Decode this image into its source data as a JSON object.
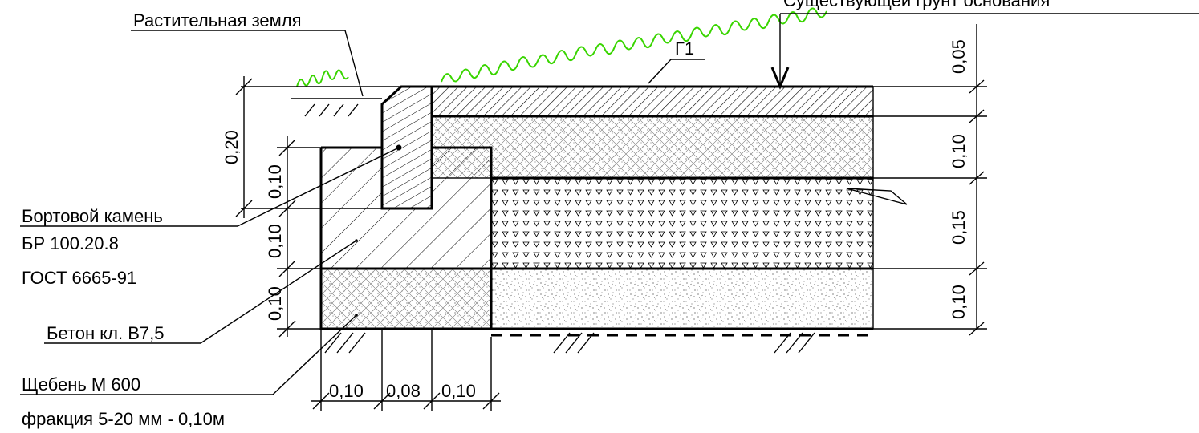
{
  "labels": {
    "top_right": "Существующей грунт основания",
    "soil": "Растительная земля",
    "layer_g1": "Г1",
    "curb_line1": "Бортовой камень",
    "curb_line2": "БР 100.20.8",
    "curb_line3": "ГОСТ 6665-91",
    "concrete": "Бетон кл. В7,5",
    "gravel_line1": "Щебень М 600",
    "gravel_line2": "фракция 5-20 мм - 0,10м"
  },
  "dimensions": {
    "right": [
      "0,05",
      "0,10",
      "0,15",
      "0,10"
    ],
    "left_curb_height": "0,20",
    "left_steps": [
      "0,10",
      "0,10",
      "0,10"
    ],
    "bottom": [
      "0,10",
      "0,08",
      "0,10"
    ]
  },
  "colors": {
    "line": "#000000",
    "grass": "#39d500"
  }
}
